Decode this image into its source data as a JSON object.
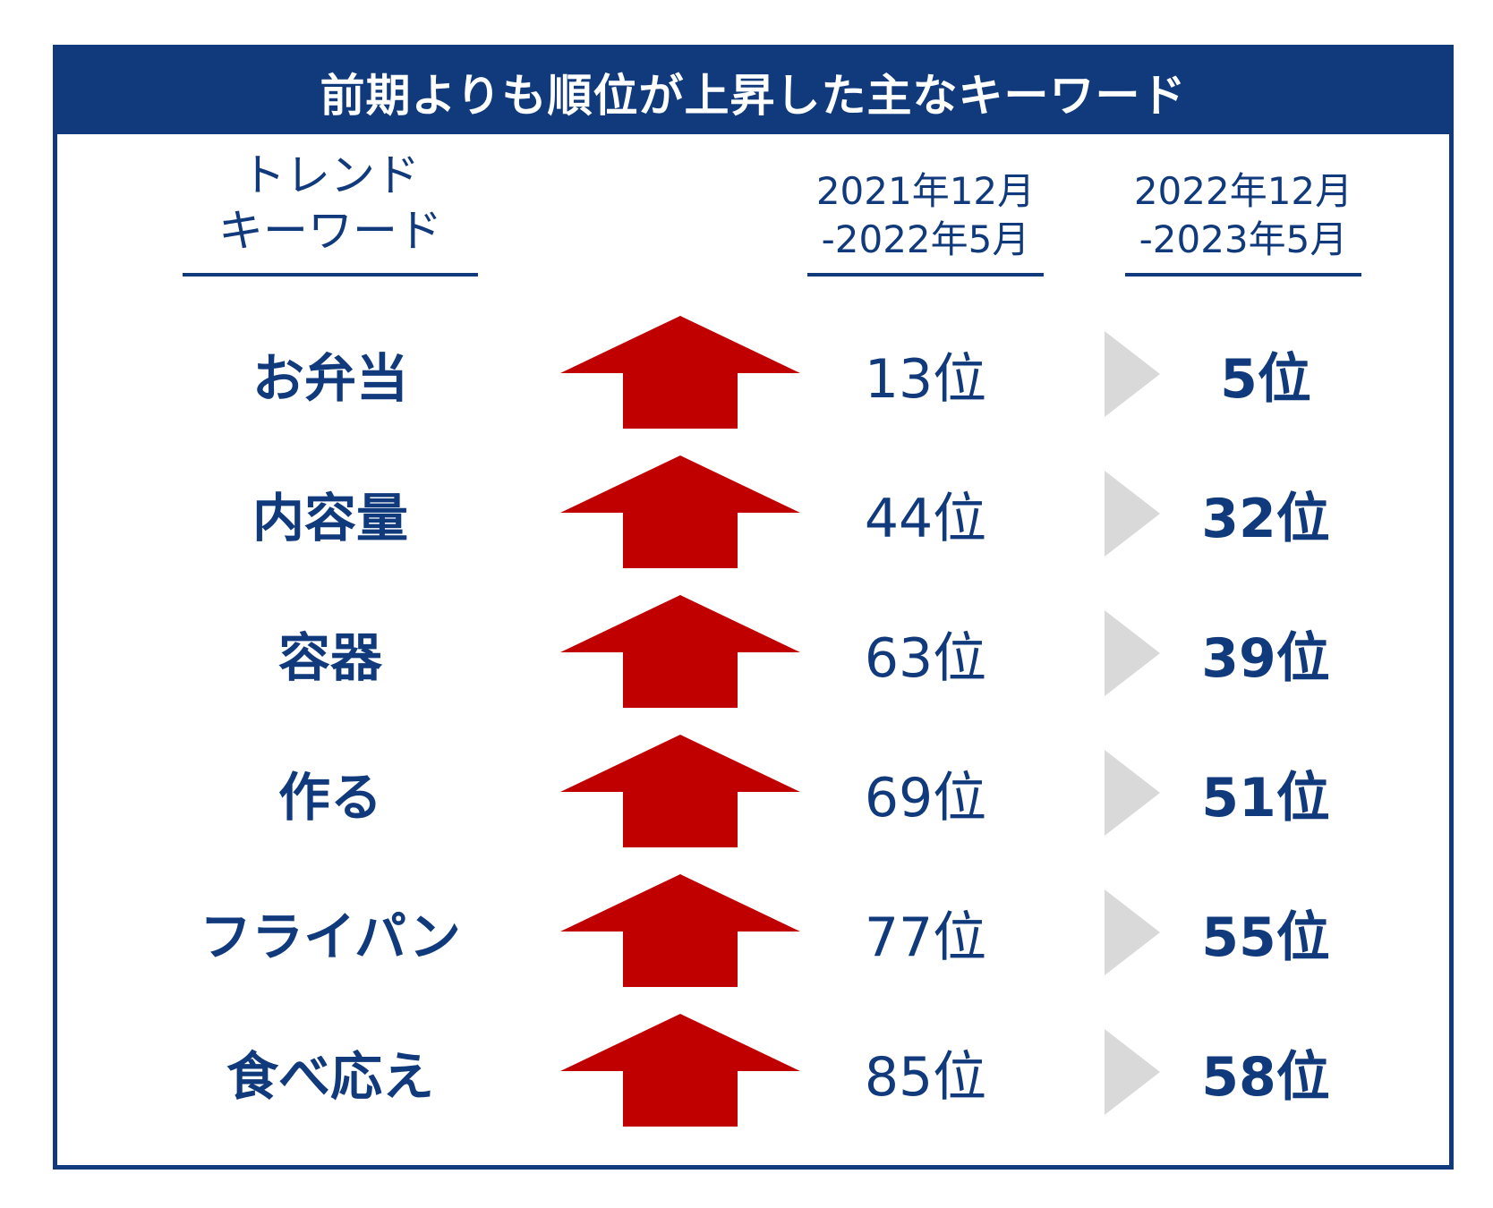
{
  "title": "前期よりも順位が上昇した主なキーワード",
  "headers": {
    "keyword": [
      "トレンド",
      "キーワード"
    ],
    "period_before": [
      "2021年12月",
      "-2022年5月"
    ],
    "period_after": [
      "2022年12月",
      "-2023年5月"
    ]
  },
  "rows": [
    {
      "keyword": "お弁当",
      "before": "13位",
      "after": "5位"
    },
    {
      "keyword": "内容量",
      "before": "44位",
      "after": "32位"
    },
    {
      "keyword": "容器",
      "before": "63位",
      "after": "39位"
    },
    {
      "keyword": "作る",
      "before": "69位",
      "after": "51位"
    },
    {
      "keyword": "フライパン",
      "before": "77位",
      "after": "55位"
    },
    {
      "keyword": "食べ応え",
      "before": "85位",
      "after": "58位"
    }
  ],
  "icons": {
    "trend_arrow": "up-arrow-icon",
    "transition": "right-triangle-icon"
  },
  "colors": {
    "navy": "#103a7c",
    "arrow_red": "#c00000",
    "triangle_gray": "#d9d9d9",
    "background": "#ffffff"
  }
}
